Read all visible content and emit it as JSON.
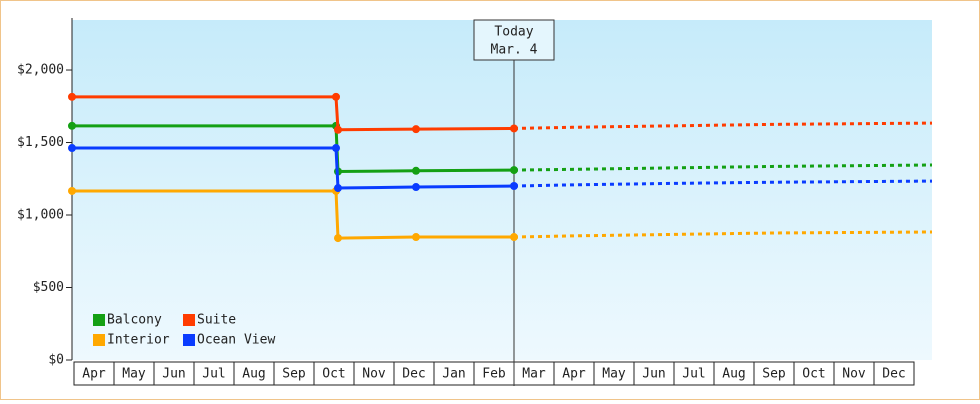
{
  "chart_data": {
    "type": "line",
    "x": [
      0,
      6.6,
      6.65,
      8.6,
      11.05
    ],
    "forecast_x": [
      11.05,
      12.5,
      15,
      17.5,
      21.5
    ],
    "series": [
      {
        "name": "Balcony",
        "color": "#14a014",
        "values": [
          1615,
          1615,
          1300,
          1305,
          1310
        ],
        "forecast": [
          1310,
          1315,
          1325,
          1335,
          1345
        ]
      },
      {
        "name": "Suite",
        "color": "#ff3c00",
        "values": [
          1815,
          1815,
          1588,
          1592,
          1597
        ],
        "forecast": [
          1597,
          1605,
          1615,
          1625,
          1634
        ]
      },
      {
        "name": "Interior",
        "color": "#ffa800",
        "values": [
          1166,
          1166,
          841,
          848,
          848
        ],
        "forecast": [
          848,
          856,
          866,
          876,
          883
        ]
      },
      {
        "name": "Ocean View",
        "color": "#0a3cff",
        "values": [
          1462,
          1462,
          1186,
          1193,
          1200
        ],
        "forecast": [
          1200,
          1208,
          1218,
          1226,
          1234
        ]
      }
    ],
    "xlim": [
      0,
      21.5
    ],
    "xticks": [
      {
        "value": 0.5,
        "label": "Apr"
      },
      {
        "value": 1.5,
        "label": "May"
      },
      {
        "value": 2.5,
        "label": "Jun"
      },
      {
        "value": 3.5,
        "label": "Jul"
      },
      {
        "value": 4.5,
        "label": "Aug"
      },
      {
        "value": 5.5,
        "label": "Sep"
      },
      {
        "value": 6.5,
        "label": "Oct"
      },
      {
        "value": 7.5,
        "label": "Nov"
      },
      {
        "value": 8.5,
        "label": "Dec"
      },
      {
        "value": 9.5,
        "label": "Jan"
      },
      {
        "value": 10.5,
        "label": "Feb"
      },
      {
        "value": 11.5,
        "label": "Mar"
      },
      {
        "value": 12.5,
        "label": "Apr"
      },
      {
        "value": 13.5,
        "label": "May"
      },
      {
        "value": 14.5,
        "label": "Jun"
      },
      {
        "value": 15.5,
        "label": "Jul"
      },
      {
        "value": 16.5,
        "label": "Aug"
      },
      {
        "value": 17.5,
        "label": "Sep"
      },
      {
        "value": 18.5,
        "label": "Oct"
      },
      {
        "value": 19.5,
        "label": "Nov"
      },
      {
        "value": 20.5,
        "label": "Dec"
      }
    ],
    "ylim": [
      0,
      2345
    ],
    "yticks": [
      {
        "value": 0,
        "label": "$0"
      },
      {
        "value": 500,
        "label": "$500"
      },
      {
        "value": 1000,
        "label": "$1,000"
      },
      {
        "value": 1500,
        "label": "$1,500"
      },
      {
        "value": 2000,
        "label": "$2,000"
      }
    ],
    "today": {
      "x": 11.05,
      "title": "Today",
      "date": "Mar. 4"
    }
  }
}
